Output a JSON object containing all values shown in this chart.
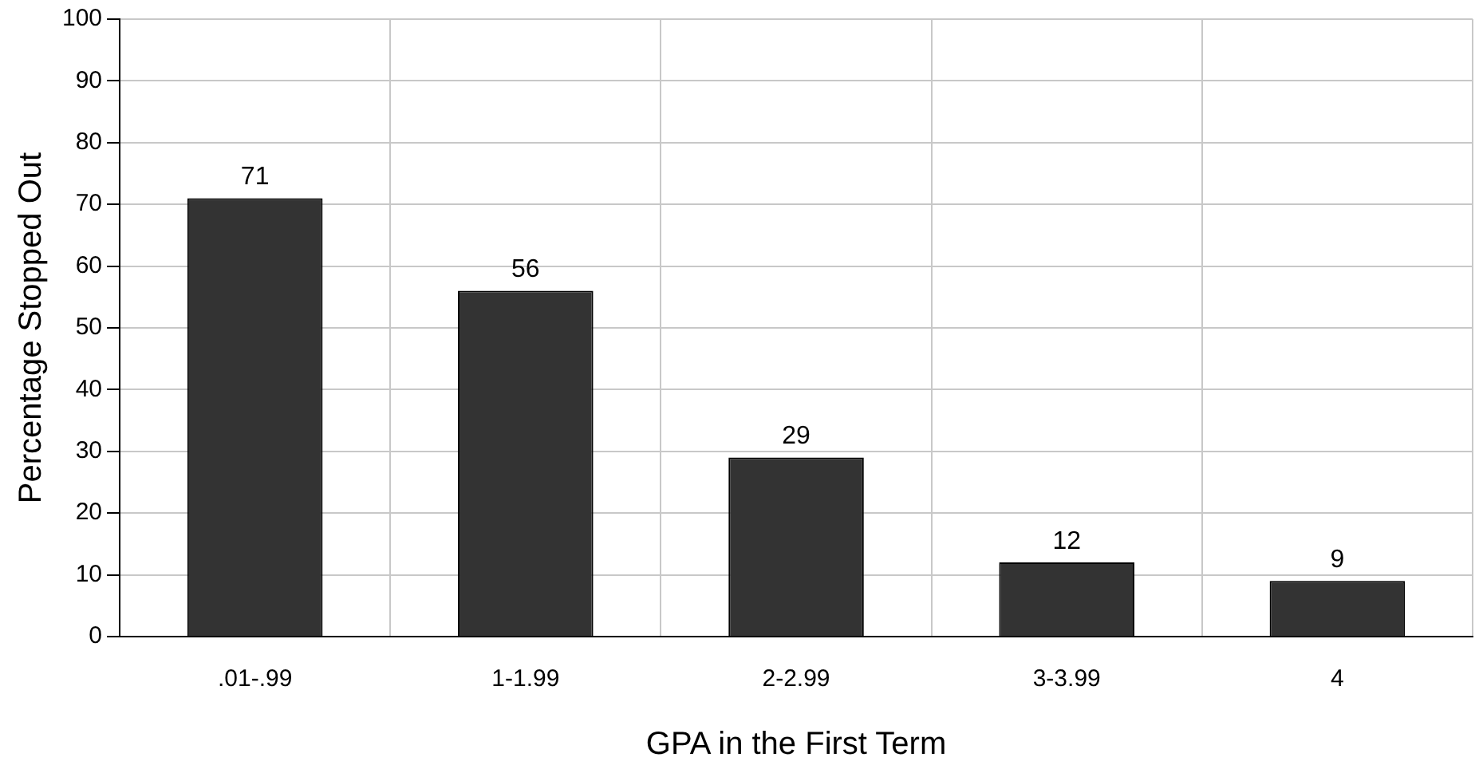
{
  "chart_data": {
    "type": "bar",
    "xlabel": "GPA in the First Term",
    "ylabel": "Percentage Stopped Out",
    "categories": [
      ".01-.99",
      "1-1.99",
      "2-2.99",
      "3-3.99",
      "4"
    ],
    "values": [
      71,
      56,
      29,
      12,
      9
    ],
    "color": "#333333",
    "ylim": [
      0,
      100
    ],
    "yticks": [
      0,
      10,
      20,
      30,
      40,
      50,
      60,
      70,
      80,
      90,
      100
    ],
    "grid": true,
    "data_labels": true
  }
}
